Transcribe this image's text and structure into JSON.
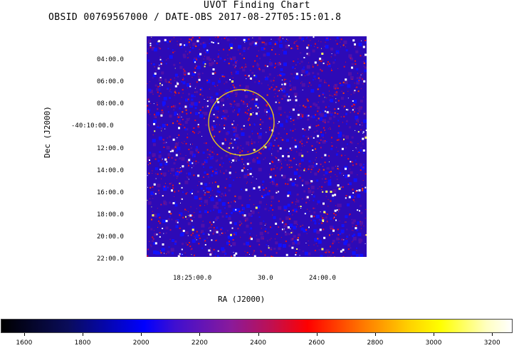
{
  "chart_data": {
    "type": "heatmap",
    "title": "UVOT Finding Chart",
    "subtitle": "OBSID 00769567000 / DATE-OBS 2017-08-27T05:15:01.8",
    "xlabel": "RA (J2000)",
    "ylabel": "Dec (J2000)",
    "x_ticks": [
      "18:25:00.0",
      "30.0",
      "24:00.0"
    ],
    "y_ticks": [
      "04:00.0",
      "06:00.0",
      "08:00.0",
      "-40:10:00.0",
      "12:00.0",
      "14:00.0",
      "16:00.0",
      "18:00.0",
      "20:00.0",
      "22:00.0"
    ],
    "colorbar": {
      "ticks": [
        "1600",
        "1800",
        "2000",
        "2200",
        "2400",
        "2600",
        "2800",
        "3000",
        "3200"
      ],
      "range": [
        1520,
        3270
      ],
      "colors": [
        "#000000",
        "#0000ff",
        "#ff0000",
        "#ffff00",
        "#ffffff"
      ]
    },
    "background_color": "#2d0ab6",
    "circle_color": "#e8c81a"
  }
}
